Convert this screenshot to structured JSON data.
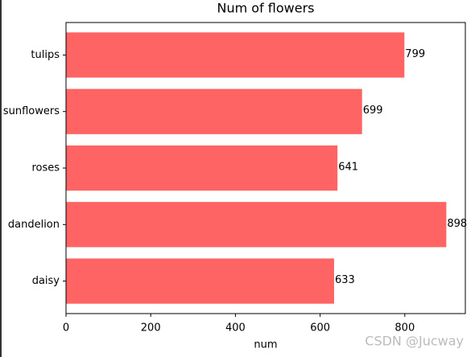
{
  "chart_data": {
    "type": "barh",
    "title": "Num of flowers",
    "xlabel": "num",
    "categories": [
      "daisy",
      "dandelion",
      "roses",
      "sunflowers",
      "tulips"
    ],
    "values": [
      633,
      898,
      641,
      699,
      799
    ],
    "color": "#ff6464",
    "xlim": [
      0,
      942.9
    ],
    "xticks": [
      0,
      200,
      400,
      600,
      800
    ]
  },
  "watermark": "CSDN @Jucway"
}
